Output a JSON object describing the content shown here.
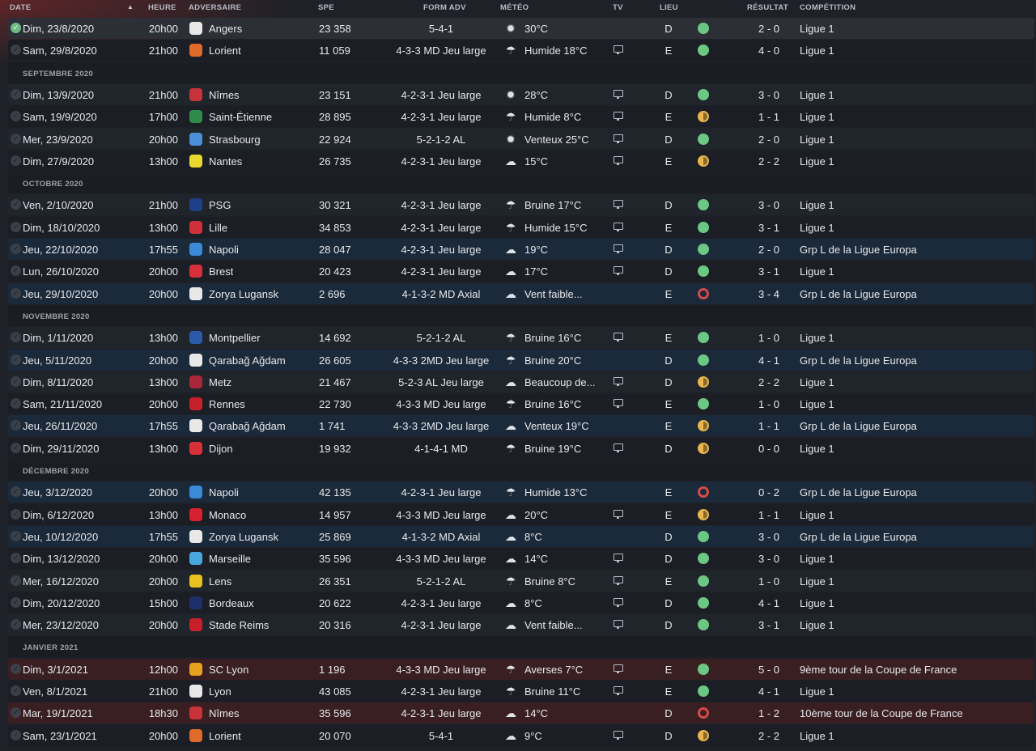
{
  "header": {
    "date": "DATE",
    "heure": "HEURE",
    "adversaire": "ADVERSAIRE",
    "spe": "SPE",
    "form": "FORM ADV",
    "meteo": "MÉTÉO",
    "tv": "TV",
    "lieu": "LIEU",
    "resultat": "RÉSULTAT",
    "competition": "COMPÉTITION"
  },
  "entries": [
    {
      "kind": "match",
      "style": "selected",
      "played": true,
      "date": "Dim, 23/8/2020",
      "time": "20h00",
      "opponent": "Angers",
      "badge_color": "#e8e8e8",
      "spe": "23 358",
      "form": "5-4-1",
      "weather": "sun",
      "meteo": "30°C",
      "tv": false,
      "lieu": "D",
      "outcome": "win",
      "score": "2 - 0",
      "comp": "Ligue 1"
    },
    {
      "kind": "match",
      "style": "plain",
      "played": false,
      "date": "Sam, 29/8/2020",
      "time": "21h00",
      "opponent": "Lorient",
      "badge_color": "#e06a2a",
      "spe": "11 059",
      "form": "4-3-3 MD Jeu large",
      "weather": "rain",
      "meteo": "Humide 18°C",
      "tv": true,
      "lieu": "E",
      "outcome": "win",
      "score": "4 - 0",
      "comp": "Ligue 1"
    },
    {
      "kind": "section",
      "label": "SEPTEMBRE 2020"
    },
    {
      "kind": "match",
      "style": "alt",
      "played": false,
      "date": "Dim, 13/9/2020",
      "time": "21h00",
      "opponent": "Nîmes",
      "badge_color": "#c8323a",
      "spe": "23 151",
      "form": "4-2-3-1 Jeu large",
      "weather": "sun",
      "meteo": "28°C",
      "tv": true,
      "lieu": "D",
      "outcome": "win",
      "score": "3 - 0",
      "comp": "Ligue 1"
    },
    {
      "kind": "match",
      "style": "plain",
      "played": false,
      "date": "Sam, 19/9/2020",
      "time": "17h00",
      "opponent": "Saint-Étienne",
      "badge_color": "#2e8b4a",
      "spe": "28 895",
      "form": "4-2-3-1 Jeu large",
      "weather": "rain",
      "meteo": "Humide 8°C",
      "tv": true,
      "lieu": "E",
      "outcome": "draw",
      "score": "1 - 1",
      "comp": "Ligue 1"
    },
    {
      "kind": "match",
      "style": "alt",
      "played": false,
      "date": "Mer, 23/9/2020",
      "time": "20h00",
      "opponent": "Strasbourg",
      "badge_color": "#4a90d8",
      "spe": "22 924",
      "form": "5-2-1-2 AL",
      "weather": "sun",
      "meteo": "Venteux 25°C",
      "tv": true,
      "lieu": "D",
      "outcome": "win",
      "score": "2 - 0",
      "comp": "Ligue 1"
    },
    {
      "kind": "match",
      "style": "plain",
      "played": false,
      "date": "Dim, 27/9/2020",
      "time": "13h00",
      "opponent": "Nantes",
      "badge_color": "#e8d830",
      "spe": "26 735",
      "form": "4-2-3-1 Jeu large",
      "weather": "cloud",
      "meteo": "15°C",
      "tv": true,
      "lieu": "E",
      "outcome": "draw",
      "score": "2 - 2",
      "comp": "Ligue 1"
    },
    {
      "kind": "section",
      "label": "OCTOBRE 2020"
    },
    {
      "kind": "match",
      "style": "alt",
      "played": false,
      "date": "Ven, 2/10/2020",
      "time": "21h00",
      "opponent": "PSG",
      "badge_color": "#1f3f8a",
      "spe": "30 321",
      "form": "4-2-3-1 Jeu large",
      "weather": "rain",
      "meteo": "Bruine 17°C",
      "tv": true,
      "lieu": "D",
      "outcome": "win",
      "score": "3 - 0",
      "comp": "Ligue 1"
    },
    {
      "kind": "match",
      "style": "plain",
      "played": false,
      "date": "Dim, 18/10/2020",
      "time": "13h00",
      "opponent": "Lille",
      "badge_color": "#d0303a",
      "spe": "34 853",
      "form": "4-2-3-1 Jeu large",
      "weather": "rain",
      "meteo": "Humide 15°C",
      "tv": true,
      "lieu": "E",
      "outcome": "win",
      "score": "3 - 1",
      "comp": "Ligue 1"
    },
    {
      "kind": "match",
      "style": "europa",
      "played": false,
      "date": "Jeu, 22/10/2020",
      "time": "17h55",
      "opponent": "Napoli",
      "badge_color": "#3a8ad8",
      "spe": "28 047",
      "form": "4-2-3-1 Jeu large",
      "weather": "cloud",
      "meteo": "19°C",
      "tv": true,
      "lieu": "D",
      "outcome": "win",
      "score": "2 - 0",
      "comp": "Grp L de la Ligue Europa"
    },
    {
      "kind": "match",
      "style": "plain",
      "played": false,
      "date": "Lun, 26/10/2020",
      "time": "20h00",
      "opponent": "Brest",
      "badge_color": "#d8303a",
      "spe": "20 423",
      "form": "4-2-3-1 Jeu large",
      "weather": "cloud",
      "meteo": "17°C",
      "tv": true,
      "lieu": "D",
      "outcome": "win",
      "score": "3 - 1",
      "comp": "Ligue 1"
    },
    {
      "kind": "match",
      "style": "europa",
      "played": false,
      "date": "Jeu, 29/10/2020",
      "time": "20h00",
      "opponent": "Zorya Lugansk",
      "badge_color": "#e8e8e8",
      "spe": "2 696",
      "form": "4-1-3-2 MD Axial",
      "weather": "cloud",
      "meteo": "Vent faible...",
      "tv": false,
      "lieu": "E",
      "outcome": "loss",
      "score": "3 - 4",
      "comp": "Grp L de la Ligue Europa"
    },
    {
      "kind": "section",
      "label": "NOVEMBRE 2020"
    },
    {
      "kind": "match",
      "style": "alt",
      "played": false,
      "date": "Dim, 1/11/2020",
      "time": "13h00",
      "opponent": "Montpellier",
      "badge_color": "#2a5aa8",
      "spe": "14 692",
      "form": "5-2-1-2 AL",
      "weather": "rain",
      "meteo": "Bruine 16°C",
      "tv": true,
      "lieu": "E",
      "outcome": "win",
      "score": "1 - 0",
      "comp": "Ligue 1"
    },
    {
      "kind": "match",
      "style": "europa",
      "played": false,
      "date": "Jeu, 5/11/2020",
      "time": "20h00",
      "opponent": "Qarabağ Ağdam",
      "badge_color": "#e8e8e8",
      "spe": "26 605",
      "form": "4-3-3 2MD Jeu large",
      "weather": "rain",
      "meteo": "Bruine 20°C",
      "tv": false,
      "lieu": "D",
      "outcome": "win",
      "score": "4 - 1",
      "comp": "Grp L de la Ligue Europa"
    },
    {
      "kind": "match",
      "style": "alt",
      "played": false,
      "date": "Dim, 8/11/2020",
      "time": "13h00",
      "opponent": "Metz",
      "badge_color": "#a8283a",
      "spe": "21 467",
      "form": "5-2-3 AL Jeu large",
      "weather": "cloud",
      "meteo": "Beaucoup de...",
      "tv": true,
      "lieu": "D",
      "outcome": "draw",
      "score": "2 - 2",
      "comp": "Ligue 1"
    },
    {
      "kind": "match",
      "style": "plain",
      "played": false,
      "date": "Sam, 21/11/2020",
      "time": "20h00",
      "opponent": "Rennes",
      "badge_color": "#c8202a",
      "spe": "22 730",
      "form": "4-3-3 MD Jeu large",
      "weather": "rain",
      "meteo": "Bruine 16°C",
      "tv": true,
      "lieu": "E",
      "outcome": "win",
      "score": "1 - 0",
      "comp": "Ligue 1"
    },
    {
      "kind": "match",
      "style": "europa",
      "played": false,
      "date": "Jeu, 26/11/2020",
      "time": "17h55",
      "opponent": "Qarabağ Ağdam",
      "badge_color": "#e8e8e8",
      "spe": "1 741",
      "form": "4-3-3 2MD Jeu large",
      "weather": "cloud",
      "meteo": "Venteux 19°C",
      "tv": false,
      "lieu": "E",
      "outcome": "draw",
      "score": "1 - 1",
      "comp": "Grp L de la Ligue Europa"
    },
    {
      "kind": "match",
      "style": "plain",
      "played": false,
      "date": "Dim, 29/11/2020",
      "time": "13h00",
      "opponent": "Dijon",
      "badge_color": "#d8303a",
      "spe": "19 932",
      "form": "4-1-4-1 MD",
      "weather": "rain",
      "meteo": "Bruine 19°C",
      "tv": true,
      "lieu": "D",
      "outcome": "draw",
      "score": "0 - 0",
      "comp": "Ligue 1"
    },
    {
      "kind": "section",
      "label": "DÉCEMBRE 2020"
    },
    {
      "kind": "match",
      "style": "europa",
      "played": false,
      "date": "Jeu, 3/12/2020",
      "time": "20h00",
      "opponent": "Napoli",
      "badge_color": "#3a8ad8",
      "spe": "42 135",
      "form": "4-2-3-1 Jeu large",
      "weather": "rain",
      "meteo": "Humide 13°C",
      "tv": false,
      "lieu": "E",
      "outcome": "loss",
      "score": "0 - 2",
      "comp": "Grp L de la Ligue Europa"
    },
    {
      "kind": "match",
      "style": "plain",
      "played": false,
      "date": "Dim, 6/12/2020",
      "time": "13h00",
      "opponent": "Monaco",
      "badge_color": "#d82030",
      "spe": "14 957",
      "form": "4-3-3 MD Jeu large",
      "weather": "cloud",
      "meteo": "20°C",
      "tv": true,
      "lieu": "E",
      "outcome": "draw",
      "score": "1 - 1",
      "comp": "Ligue 1"
    },
    {
      "kind": "match",
      "style": "europa",
      "played": false,
      "date": "Jeu, 10/12/2020",
      "time": "17h55",
      "opponent": "Zorya Lugansk",
      "badge_color": "#e8e8e8",
      "spe": "25 869",
      "form": "4-1-3-2 MD Axial",
      "weather": "cloud",
      "meteo": "8°C",
      "tv": false,
      "lieu": "D",
      "outcome": "win",
      "score": "3 - 0",
      "comp": "Grp L de la Ligue Europa"
    },
    {
      "kind": "match",
      "style": "plain",
      "played": false,
      "date": "Dim, 13/12/2020",
      "time": "20h00",
      "opponent": "Marseille",
      "badge_color": "#4aa8e0",
      "spe": "35 596",
      "form": "4-3-3 MD Jeu large",
      "weather": "cloud",
      "meteo": "14°C",
      "tv": true,
      "lieu": "D",
      "outcome": "win",
      "score": "3 - 0",
      "comp": "Ligue 1"
    },
    {
      "kind": "match",
      "style": "alt",
      "played": false,
      "date": "Mer, 16/12/2020",
      "time": "20h00",
      "opponent": "Lens",
      "badge_color": "#e8c020",
      "spe": "26 351",
      "form": "5-2-1-2 AL",
      "weather": "rain",
      "meteo": "Bruine 8°C",
      "tv": true,
      "lieu": "E",
      "outcome": "win",
      "score": "1 - 0",
      "comp": "Ligue 1"
    },
    {
      "kind": "match",
      "style": "plain",
      "played": false,
      "date": "Dim, 20/12/2020",
      "time": "15h00",
      "opponent": "Bordeaux",
      "badge_color": "#1f2f6a",
      "spe": "20 622",
      "form": "4-2-3-1 Jeu large",
      "weather": "cloud",
      "meteo": "8°C",
      "tv": true,
      "lieu": "D",
      "outcome": "win",
      "score": "4 - 1",
      "comp": "Ligue 1"
    },
    {
      "kind": "match",
      "style": "alt",
      "played": false,
      "date": "Mer, 23/12/2020",
      "time": "20h00",
      "opponent": "Stade Reims",
      "badge_color": "#c8202a",
      "spe": "20 316",
      "form": "4-2-3-1 Jeu large",
      "weather": "cloud",
      "meteo": "Vent faible...",
      "tv": true,
      "lieu": "D",
      "outcome": "win",
      "score": "3 - 1",
      "comp": "Ligue 1"
    },
    {
      "kind": "section",
      "label": "JANVIER 2021"
    },
    {
      "kind": "match",
      "style": "cup",
      "played": false,
      "date": "Dim, 3/1/2021",
      "time": "12h00",
      "opponent": "SC Lyon",
      "badge_color": "#e8a020",
      "spe": "1 196",
      "form": "4-3-3 MD Jeu large",
      "weather": "rain",
      "meteo": "Averses 7°C",
      "tv": true,
      "lieu": "E",
      "outcome": "win",
      "score": "5 - 0",
      "comp": "9ème tour de la Coupe de France"
    },
    {
      "kind": "match",
      "style": "plain",
      "played": false,
      "date": "Ven, 8/1/2021",
      "time": "21h00",
      "opponent": "Lyon",
      "badge_color": "#e8e8e8",
      "spe": "43 085",
      "form": "4-2-3-1 Jeu large",
      "weather": "rain",
      "meteo": "Bruine 11°C",
      "tv": true,
      "lieu": "E",
      "outcome": "win",
      "score": "4 - 1",
      "comp": "Ligue 1"
    },
    {
      "kind": "match",
      "style": "cup",
      "played": false,
      "date": "Mar, 19/1/2021",
      "time": "18h30",
      "opponent": "Nîmes",
      "badge_color": "#c8323a",
      "spe": "35 596",
      "form": "4-2-3-1 Jeu large",
      "weather": "cloud",
      "meteo": "14°C",
      "tv": false,
      "lieu": "D",
      "outcome": "loss",
      "score": "1 - 2",
      "comp": "10ème tour de la Coupe de France"
    },
    {
      "kind": "match",
      "style": "plain",
      "played": false,
      "date": "Sam, 23/1/2021",
      "time": "20h00",
      "opponent": "Lorient",
      "badge_color": "#e06a2a",
      "spe": "20 070",
      "form": "5-4-1",
      "weather": "cloud",
      "meteo": "9°C",
      "tv": true,
      "lieu": "D",
      "outcome": "draw",
      "score": "2 - 2",
      "comp": "Ligue 1"
    }
  ]
}
